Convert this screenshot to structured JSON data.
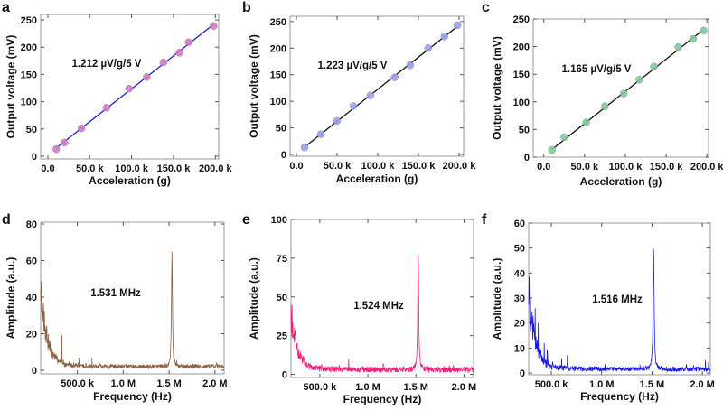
{
  "chart_data": [
    {
      "panel": "a",
      "type": "scatter",
      "xlabel": "Acceleration (g)",
      "ylabel": "Output voltage (mV)",
      "xlim": [
        -8600,
        204000
      ],
      "ylim": [
        -5,
        260
      ],
      "xticks": [
        0,
        50000,
        100000,
        150000,
        200000
      ],
      "xtick_labels": [
        "0.0",
        "50.0 k",
        "100.0 k",
        "150.0 k",
        "200.0 k"
      ],
      "yticks": [
        0,
        50,
        100,
        150,
        200,
        250
      ],
      "ytick_labels": [
        "0",
        "50",
        "100",
        "150",
        "200",
        "250"
      ],
      "annotation": "1.212 µV/g/5 V",
      "point_color": "#d77ac8",
      "line_color": "#1b1bd0",
      "x": [
        10000,
        20000,
        40000,
        70000,
        97000,
        118000,
        138000,
        157000,
        168000,
        198000
      ],
      "y": [
        13,
        25,
        51,
        89,
        124,
        145,
        172,
        190,
        209,
        239
      ],
      "fit": {
        "x": [
          10000,
          198000
        ],
        "y": [
          15,
          242
        ]
      }
    },
    {
      "panel": "b",
      "type": "scatter",
      "xlabel": "Acceleration (g)",
      "ylabel": "Output voltage (mV)",
      "xlim": [
        -7800,
        205600
      ],
      "ylim": [
        -3.4,
        260
      ],
      "xticks": [
        0,
        50000,
        100000,
        150000,
        200000
      ],
      "xtick_labels": [
        "0.0",
        "50.0 k",
        "100.0 k",
        "150.0 k",
        "200.0 k"
      ],
      "yticks": [
        0,
        50,
        100,
        150,
        200,
        250
      ],
      "ytick_labels": [
        "0",
        "50",
        "100",
        "150",
        "200",
        "250"
      ],
      "annotation": "1.223 µV/g/5 V",
      "point_color": "#9ba2ea",
      "line_color": "#111111",
      "x": [
        10000,
        30000,
        50000,
        70000,
        91000,
        121000,
        140000,
        162000,
        182000,
        198000
      ],
      "y": [
        13,
        38,
        63,
        91,
        111,
        145,
        168,
        200,
        222,
        243
      ],
      "fit": {
        "x": [
          10000,
          198000
        ],
        "y": [
          14,
          241
        ]
      }
    },
    {
      "panel": "c",
      "type": "scatter",
      "xlabel": "Acceleration (g)",
      "ylabel": "Output voltage (mV)",
      "xlim": [
        -13000,
        202000
      ],
      "ylim": [
        0,
        250
      ],
      "xticks": [
        0,
        50000,
        100000,
        150000,
        200000
      ],
      "xtick_labels": [
        "0.0",
        "50.0 k",
        "100.0 k",
        "150.0 k",
        "200.0 k"
      ],
      "yticks": [
        0,
        50,
        100,
        150,
        200,
        250
      ],
      "ytick_labels": [
        "0",
        "50",
        "100",
        "150",
        "200",
        "250"
      ],
      "annotation": "1.165 µV/g/5 V",
      "point_color": "#80cc9c",
      "line_color": "#111111",
      "x": [
        10000,
        25000,
        52000,
        75000,
        98000,
        117000,
        135000,
        165000,
        183000,
        196000
      ],
      "y": [
        13,
        36,
        63,
        92,
        115,
        140,
        164,
        199,
        214,
        229
      ],
      "fit": {
        "x": [
          10000,
          196000
        ],
        "y": [
          14,
          231
        ]
      }
    },
    {
      "panel": "d",
      "type": "line",
      "xlabel": "Frequency (Hz)",
      "ylabel": "Amplitude (a.u.)",
      "xlim": [
        100000,
        2100000
      ],
      "ylim": [
        -2,
        81
      ],
      "xticks": [
        500000,
        1000000,
        1500000,
        2000000
      ],
      "xtick_labels": [
        "500.0 k",
        "1.0 M",
        "1.5 M",
        "2.0 M"
      ],
      "yticks": [
        0,
        20,
        40,
        60,
        80
      ],
      "ytick_labels": [
        "0",
        "20",
        "40",
        "60",
        "80"
      ],
      "annotation": "1.531 MHz",
      "line_color": "#8b6244",
      "peak_freq_hz": 1531000,
      "peak_amplitude": 64,
      "noise_floor": 2,
      "low_freq_amplitude": 45,
      "low_freq_decay_hz": 70000,
      "spikes": [
        {
          "f": 330000,
          "a": 19
        },
        {
          "f": 660000,
          "a": 7
        }
      ]
    },
    {
      "panel": "e",
      "type": "line",
      "xlabel": "Frequency (Hz)",
      "ylabel": "Amplitude (a.u.)",
      "xlim": [
        200000,
        2100000
      ],
      "ylim": [
        -2,
        100
      ],
      "xticks": [
        500000,
        1000000,
        1500000,
        2000000
      ],
      "xtick_labels": [
        "500.0 k",
        "1.0 M",
        "1.5 M",
        "2.0 M"
      ],
      "yticks": [
        0,
        25,
        50,
        75,
        100
      ],
      "ytick_labels": [
        "0",
        "25",
        "50",
        "75",
        "100"
      ],
      "annotation": "1.524 MHz",
      "line_color": "#f0207a",
      "peak_freq_hz": 1524000,
      "peak_amplitude": 76,
      "noise_floor": 3,
      "low_freq_amplitude": 44,
      "low_freq_decay_hz": 60000,
      "spikes": [
        {
          "f": 800000,
          "a": 10
        },
        {
          "f": 1160000,
          "a": 7
        }
      ]
    },
    {
      "panel": "f",
      "type": "line",
      "xlabel": "Frequency (Hz)",
      "ylabel": "Amplitude (a.u.)",
      "xlim": [
        275000,
        2080000
      ],
      "ylim": [
        -0.7,
        60
      ],
      "xticks": [
        500000,
        1000000,
        1500000,
        2000000
      ],
      "xtick_labels": [
        "500.0 k",
        "1.0 M",
        "1.5 M",
        "2.0 M"
      ],
      "yticks": [
        0,
        10,
        20,
        30,
        40,
        50,
        60
      ],
      "ytick_labels": [
        "0",
        "10",
        "20",
        "30",
        "40",
        "50",
        "60"
      ],
      "annotation": "1.516 MHz",
      "line_color": "#1a1ae6",
      "peak_freq_hz": 1516000,
      "peak_amplitude": 49,
      "noise_floor": 1.5,
      "low_freq_amplitude": 33,
      "low_freq_decay_hz": 60000,
      "spikes": [
        {
          "f": 340000,
          "a": 26
        },
        {
          "f": 370000,
          "a": 20
        },
        {
          "f": 430000,
          "a": 12
        },
        {
          "f": 460000,
          "a": 9
        },
        {
          "f": 660000,
          "a": 7
        }
      ]
    }
  ]
}
